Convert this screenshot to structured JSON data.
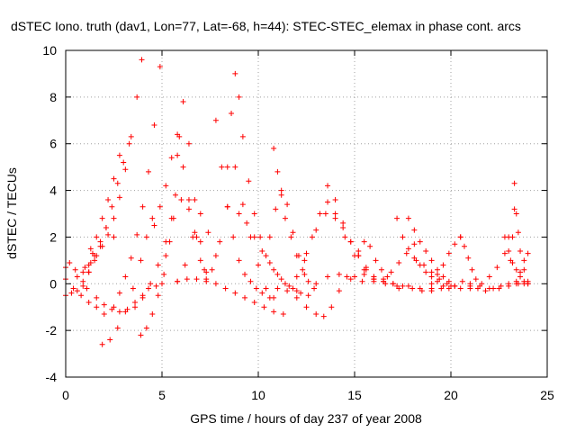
{
  "chart_data": {
    "type": "scatter",
    "title": "dSTEC Iono. truth (dav1, Lon=77, Lat=-68, h=44): STEC-STEC_elemax in phase cont. arcs",
    "xlabel": "GPS time / hours of day 237 of year 2008",
    "ylabel": "dSTEC  / TECUs",
    "xlim": [
      0,
      25
    ],
    "ylim": [
      -4,
      10
    ],
    "x_ticks": [
      0,
      5,
      10,
      15,
      20,
      25
    ],
    "y_ticks": [
      -4,
      -2,
      0,
      2,
      4,
      6,
      8,
      10
    ],
    "x_tick_labels": [
      "0",
      "5",
      "10",
      "15",
      "20",
      "25"
    ],
    "y_tick_labels": [
      "-4",
      "-2",
      "0",
      "2",
      "4",
      "6",
      "8",
      "10"
    ],
    "grid": true,
    "marker": "plus",
    "marker_color": "#ff0000",
    "series": [
      {
        "x": [
          0.0,
          0.6,
          1.1,
          1.6,
          2.0,
          2.4,
          2.8,
          3.2,
          3.6,
          4.0,
          4.3,
          4.7,
          5.0
        ],
        "y": [
          0.7,
          0.3,
          -0.2,
          -0.6,
          -0.9,
          -1.1,
          -1.2,
          -1.1,
          -0.8,
          -0.5,
          -0.2,
          -0.1,
          0.0
        ]
      },
      {
        "x": [
          0.0,
          0.4,
          0.8,
          1.2,
          1.6,
          2.0
        ],
        "y": [
          0.2,
          -0.2,
          -0.5,
          -0.8,
          -1.0,
          -1.3
        ]
      },
      {
        "x": [
          0.0,
          0.3,
          0.6,
          0.9,
          1.2,
          1.5,
          1.8,
          2.1,
          2.5
        ],
        "y": [
          -0.5,
          -0.4,
          -0.3,
          0.1,
          0.5,
          1.2,
          1.8,
          2.4,
          2.0
        ]
      },
      {
        "x": [
          0.2,
          0.5,
          0.9,
          1.2,
          1.4
        ],
        "y": [
          0.9,
          0.6,
          0.5,
          0.8,
          1.3
        ]
      },
      {
        "x": [
          0.9,
          1.2,
          1.5,
          1.8,
          2.1,
          2.4,
          2.7,
          3.0,
          3.3
        ],
        "y": [
          -0.1,
          0.5,
          1.0,
          1.6,
          2.4,
          3.3,
          4.3,
          5.2,
          6.0
        ]
      },
      {
        "x": [
          1.0,
          1.3,
          1.6,
          1.9,
          2.2,
          2.5,
          2.8,
          3.1,
          3.4,
          3.7,
          3.95
        ],
        "y": [
          0.7,
          0.9,
          1.2,
          1.6,
          2.1,
          2.8,
          3.7,
          4.9,
          6.3,
          8.0,
          9.6
        ]
      },
      {
        "x": [
          1.3,
          1.6,
          1.9,
          2.2,
          2.5,
          2.8
        ],
        "y": [
          1.5,
          2.0,
          2.8,
          3.6,
          4.5,
          5.5
        ]
      },
      {
        "x": [
          1.9,
          2.3,
          2.7,
          3.1,
          3.5,
          3.9,
          4.2,
          4.5
        ],
        "y": [
          -2.6,
          -2.4,
          -1.9,
          -1.2,
          -0.2,
          1.0,
          2.0,
          2.8
        ]
      },
      {
        "x": [
          2.5,
          2.8,
          3.1,
          3.4,
          3.7,
          4.0,
          4.3,
          4.6,
          4.9
        ],
        "y": [
          -1.0,
          -0.4,
          0.3,
          1.1,
          2.1,
          3.3,
          4.8,
          6.8,
          9.3
        ]
      },
      {
        "x": [
          3.9,
          4.2,
          4.5,
          4.8,
          5.1,
          5.4,
          5.7,
          5.9
        ],
        "y": [
          -2.2,
          -1.9,
          -1.3,
          -0.5,
          0.4,
          1.8,
          3.8,
          6.3
        ]
      },
      {
        "x": [
          3.6,
          4.0,
          4.4,
          4.8,
          5.2,
          5.6,
          6.0,
          6.4,
          6.8,
          7.2
        ],
        "y": [
          -1.0,
          -0.6,
          0.0,
          0.8,
          1.8,
          2.8,
          3.6,
          3.2,
          2.0,
          0.6
        ]
      },
      {
        "x": [
          4.6,
          4.9,
          5.2,
          5.5,
          5.8,
          6.1,
          6.4,
          6.7,
          7.0,
          7.3
        ],
        "y": [
          2.5,
          3.3,
          4.2,
          5.4,
          6.4,
          5.0,
          3.6,
          2.2,
          1.0,
          0.2
        ]
      },
      {
        "x": [
          5.2,
          5.5,
          5.8,
          6.1,
          6.4,
          6.7,
          7.0,
          7.3
        ],
        "y": [
          1.2,
          2.8,
          5.5,
          7.8,
          6.0,
          3.6,
          1.8,
          0.5
        ]
      },
      {
        "x": [
          5.8,
          6.2,
          6.6,
          7.0,
          7.4,
          7.8
        ],
        "y": [
          0.1,
          0.8,
          2.0,
          3.0,
          2.2,
          1.2
        ]
      },
      {
        "x": [
          5.8,
          6.3,
          6.8,
          7.3,
          7.8,
          8.3,
          8.8,
          9.3,
          9.8,
          10.3,
          10.8,
          11.3
        ],
        "y": [
          0.1,
          0.2,
          0.2,
          0.1,
          0.0,
          -0.2,
          -0.4,
          -0.6,
          -0.8,
          -1.0,
          -1.2,
          -1.3
        ]
      },
      {
        "x": [
          7.6,
          8.0,
          8.4,
          8.8,
          9.2,
          9.6,
          10.0,
          10.4,
          10.8
        ],
        "y": [
          0.6,
          1.8,
          3.3,
          5.0,
          3.4,
          2.0,
          0.8,
          -0.2,
          -0.6
        ]
      },
      {
        "x": [
          7.8,
          8.1,
          8.4,
          8.7,
          9.0,
          9.3,
          9.6,
          9.9,
          10.2,
          10.6
        ],
        "y": [
          7.0,
          5.0,
          3.3,
          2.0,
          1.0,
          0.4,
          0.1,
          -0.2,
          -0.4,
          -0.6
        ]
      },
      {
        "x": [
          8.4,
          8.6,
          8.8,
          9.0,
          9.2,
          9.5,
          9.8,
          10.1,
          10.4,
          10.8,
          11.2,
          11.6,
          12.0
        ],
        "y": [
          5.0,
          7.3,
          9.0,
          8.0,
          6.3,
          4.4,
          3.0,
          2.0,
          1.2,
          0.6,
          0.2,
          -0.1,
          -0.3
        ]
      },
      {
        "x": [
          9.0,
          9.4,
          9.8,
          10.2,
          10.6,
          11.0,
          11.4,
          11.8,
          12.2,
          12.6
        ],
        "y": [
          3.0,
          2.6,
          2.0,
          1.4,
          0.9,
          0.4,
          0.0,
          -0.2,
          -0.4,
          -0.5
        ]
      },
      {
        "x": [
          10.8,
          11.0,
          11.2,
          11.4,
          11.7,
          12.0,
          12.3,
          12.6,
          12.9
        ],
        "y": [
          5.8,
          4.8,
          3.8,
          2.8,
          2.0,
          1.2,
          0.6,
          0.1,
          -0.2
        ]
      },
      {
        "x": [
          10.6,
          10.9,
          11.2,
          11.5,
          11.8,
          12.1,
          12.4
        ],
        "y": [
          2.0,
          3.2,
          4.0,
          3.4,
          2.2,
          1.2,
          0.4
        ]
      },
      {
        "x": [
          11.0,
          11.5,
          12.0,
          12.5,
          13.0,
          13.4,
          13.8,
          14.2,
          14.6
        ],
        "y": [
          -0.2,
          -0.3,
          -0.6,
          -1.0,
          -1.3,
          -1.4,
          -1.0,
          -0.3,
          0.3
        ]
      },
      {
        "x": [
          12.0,
          12.4,
          12.8,
          13.2,
          13.6,
          14.0,
          14.4,
          14.8,
          15.2,
          15.6,
          16.0
        ],
        "y": [
          0.3,
          1.0,
          2.0,
          3.0,
          3.5,
          3.0,
          2.4,
          1.8,
          1.2,
          0.6,
          0.2
        ]
      },
      {
        "x": [
          12.5,
          13.0,
          13.5,
          14.0,
          14.5,
          15.0,
          15.5,
          16.0,
          16.5
        ],
        "y": [
          1.3,
          2.3,
          3.0,
          2.8,
          2.0,
          1.2,
          0.6,
          0.3,
          0.1
        ]
      },
      {
        "x": [
          13.6,
          14.0,
          14.4,
          14.8,
          15.2,
          15.6,
          16.0
        ],
        "y": [
          4.2,
          3.6,
          2.6,
          1.8,
          1.2,
          0.7,
          0.3
        ]
      },
      {
        "x": [
          13.0,
          13.6,
          14.2,
          14.8,
          15.4,
          16.0,
          16.6,
          17.2,
          17.8,
          18.4,
          19.0
        ],
        "y": [
          0.0,
          0.3,
          0.4,
          0.2,
          0.1,
          0.1,
          0.0,
          -0.1,
          -0.1,
          -0.2,
          -0.2
        ]
      },
      {
        "x": [
          15.0,
          15.5,
          16.0,
          16.5,
          17.0,
          17.5,
          18.0,
          18.5,
          19.0,
          19.5,
          20.0,
          20.5,
          21.0
        ],
        "y": [
          0.3,
          0.4,
          0.2,
          0.1,
          0.0,
          -0.1,
          -0.2,
          -0.3,
          -0.3,
          -0.2,
          -0.1,
          -0.2,
          -0.1
        ]
      },
      {
        "x": [
          15.2,
          15.5,
          15.8,
          16.1,
          16.4,
          16.7,
          17.0,
          17.3
        ],
        "y": [
          1.4,
          1.8,
          1.6,
          1.0,
          0.6,
          0.3,
          0.0,
          -0.2
        ]
      },
      {
        "x": [
          16.5,
          16.9,
          17.3,
          17.7,
          18.1
        ],
        "y": [
          0.2,
          0.5,
          0.9,
          1.3,
          1.7
        ]
      },
      {
        "x": [
          17.2,
          17.5,
          17.8,
          18.1,
          18.4,
          18.7,
          19.0,
          19.3,
          19.6,
          19.9
        ],
        "y": [
          2.8,
          2.0,
          1.5,
          1.1,
          0.8,
          0.5,
          0.3,
          0.1,
          -0.1,
          -0.2
        ]
      },
      {
        "x": [
          17.8,
          18.1,
          18.4,
          18.7,
          19.0,
          19.3,
          19.6,
          19.9,
          20.2
        ],
        "y": [
          2.8,
          2.3,
          1.8,
          1.4,
          1.0,
          0.6,
          0.3,
          0.1,
          -0.1
        ]
      },
      {
        "x": [
          18.2,
          18.6,
          19.0,
          19.4,
          19.8,
          20.2
        ],
        "y": [
          1.0,
          0.8,
          0.5,
          0.2,
          0.0,
          -0.1
        ]
      },
      {
        "x": [
          19.0,
          19.3,
          19.6,
          19.9,
          20.2,
          20.5
        ],
        "y": [
          0.0,
          0.4,
          0.8,
          1.3,
          1.7,
          2.0
        ]
      },
      {
        "x": [
          20.5,
          20.7,
          20.9,
          21.1,
          21.3
        ],
        "y": [
          2.0,
          1.6,
          1.1,
          0.6,
          0.2
        ]
      },
      {
        "x": [
          20.6,
          21.0,
          21.4,
          21.8,
          22.2,
          22.6,
          23.0,
          23.4,
          23.8
        ],
        "y": [
          0.1,
          0.0,
          -0.2,
          -0.3,
          -0.2,
          -0.1,
          0.0,
          0.1,
          0.0
        ]
      },
      {
        "x": [
          21.0,
          21.5,
          22.0,
          22.5,
          23.0,
          23.5,
          24.0
        ],
        "y": [
          -0.2,
          -0.1,
          -0.2,
          -0.2,
          -0.1,
          0.0,
          0.0
        ]
      },
      {
        "x": [
          21.6,
          22.0,
          22.4,
          22.8,
          23.0
        ],
        "y": [
          0.0,
          0.3,
          0.7,
          1.3,
          2.0
        ]
      },
      {
        "x": [
          22.8,
          23.0,
          23.2,
          23.4,
          23.6,
          23.8,
          24.0
        ],
        "y": [
          2.0,
          1.4,
          0.9,
          0.6,
          0.3,
          0.1,
          0.0
        ]
      },
      {
        "x": [
          23.1,
          23.2,
          23.3,
          23.4,
          23.5,
          23.6,
          23.8,
          24.0
        ],
        "y": [
          1.0,
          2.0,
          3.2,
          3.0,
          2.2,
          1.4,
          0.6,
          0.1
        ]
      },
      {
        "x": [
          23.4,
          23.6,
          23.8,
          24.0
        ],
        "y": [
          0.0,
          0.5,
          1.0,
          1.3
        ]
      },
      {
        "x": [
          23.3
        ],
        "y": [
          4.3
        ]
      }
    ]
  }
}
